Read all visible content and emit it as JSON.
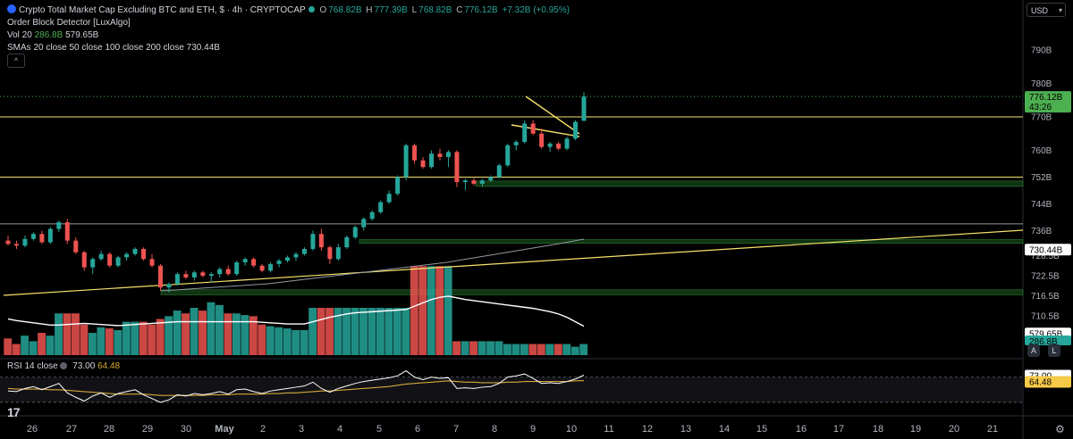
{
  "header": {
    "title": "Crypto Total Market Cap Excluding BTC and ETH, $ · 4h · CRYPTOCAP",
    "ohlc": [
      {
        "k": "O",
        "v": "768.82B"
      },
      {
        "k": "H",
        "v": "777.39B"
      },
      {
        "k": "L",
        "v": "768.82B"
      },
      {
        "k": "C",
        "v": "776.12B"
      }
    ],
    "change": "+7.32B (+0.95%)",
    "indicator1": "Order Block Detector [LuxAlgo]",
    "vol_label": "Vol 20",
    "vol_value1": "286.8B",
    "vol_value2": "579.65B",
    "sma_label": "SMAs 20 close 50 close 100 close 200 close",
    "sma_value": "730.44B",
    "collapse": "^"
  },
  "price_scale": {
    "currency": "USD",
    "ticks": [
      "790B",
      "780B",
      "770B",
      "760B",
      "752B",
      "744B",
      "736B",
      "728.5B",
      "722.5B",
      "716.5B",
      "710.5B"
    ],
    "last_price_label": "776.12B",
    "countdown": "43:26",
    "sma_label": "730.44B",
    "vol_label": "579.65B",
    "vol_label2": "286.8B",
    "auto_btn": "A",
    "log_btn": "L"
  },
  "rsi_pane": {
    "label": "RSI 14 close",
    "value": "73.00",
    "ma_value": "64.48",
    "scale_label": "73.00",
    "scale_ma_label": "64.48"
  },
  "time_axis": {
    "ticks": [
      "26",
      "27",
      "28",
      "29",
      "30",
      "May",
      "2",
      "3",
      "4",
      "5",
      "6",
      "7",
      "8",
      "9",
      "10",
      "11",
      "12",
      "13",
      "14",
      "15",
      "16",
      "17",
      "18",
      "19",
      "20",
      "21"
    ]
  },
  "colors": {
    "up": "#26a69a",
    "down": "#ef5350",
    "level": "#f7e26b",
    "order_block": "#1b5e20",
    "sma_white": "#ffffff",
    "sma_grey": "#9598a1",
    "rsi": "#ffffff",
    "rsi_ma": "#d4a83a",
    "last_price_bg": "#4caf50",
    "sma_label_bg": "#ffffff"
  },
  "icons": {
    "logo": "tradingview-logo-icon",
    "settings": "gear-icon"
  },
  "chart_data": {
    "type": "candlestick",
    "title": "Crypto Total Market Cap Excluding BTC and ETH, $ · 4h · CRYPTOCAP",
    "interval": "4h",
    "price_unit": "B USD",
    "x_labels": [
      "26",
      "27",
      "28",
      "29",
      "30",
      "May",
      "2",
      "3",
      "4",
      "5",
      "6",
      "7",
      "8",
      "9",
      "10",
      "11",
      "12",
      "13",
      "14",
      "15",
      "16",
      "17",
      "18",
      "19",
      "20",
      "21"
    ],
    "candles": [
      [
        733.0,
        734.5,
        731.5,
        732.0
      ],
      [
        732.0,
        733.0,
        730.5,
        731.5
      ],
      [
        731.5,
        734.5,
        731.0,
        733.5
      ],
      [
        733.5,
        735.5,
        733.0,
        735.0
      ],
      [
        735.0,
        736.0,
        732.0,
        732.5
      ],
      [
        732.5,
        737.0,
        732.0,
        736.5
      ],
      [
        736.5,
        739.0,
        735.5,
        738.5
      ],
      [
        738.5,
        739.5,
        732.0,
        733.0
      ],
      [
        733.0,
        734.0,
        729.0,
        729.5
      ],
      [
        729.5,
        730.0,
        724.0,
        725.0
      ],
      [
        725.0,
        728.0,
        723.0,
        727.5
      ],
      [
        727.5,
        730.0,
        727.0,
        729.0
      ],
      [
        729.0,
        729.5,
        725.0,
        725.5
      ],
      [
        725.5,
        728.5,
        725.0,
        728.0
      ],
      [
        728.0,
        729.5,
        727.0,
        729.0
      ],
      [
        729.0,
        731.0,
        728.5,
        730.5
      ],
      [
        730.5,
        731.0,
        727.0,
        727.5
      ],
      [
        727.5,
        729.0,
        725.0,
        725.5
      ],
      [
        725.5,
        726.0,
        718.0,
        719.0
      ],
      [
        719.0,
        720.5,
        717.5,
        720.0
      ],
      [
        720.0,
        723.5,
        719.5,
        723.0
      ],
      [
        723.0,
        724.0,
        721.5,
        722.0
      ],
      [
        722.0,
        724.0,
        721.0,
        723.5
      ],
      [
        723.5,
        724.0,
        722.0,
        722.5
      ],
      [
        722.5,
        723.5,
        720.5,
        723.0
      ],
      [
        723.0,
        725.0,
        722.0,
        724.5
      ],
      [
        724.5,
        725.5,
        722.5,
        723.0
      ],
      [
        723.0,
        727.0,
        722.5,
        726.5
      ],
      [
        726.5,
        728.0,
        725.5,
        727.5
      ],
      [
        727.5,
        728.0,
        725.0,
        725.5
      ],
      [
        725.5,
        726.0,
        723.5,
        724.0
      ],
      [
        724.0,
        726.5,
        723.5,
        726.0
      ],
      [
        726.0,
        727.5,
        725.0,
        727.0
      ],
      [
        727.0,
        728.5,
        726.5,
        728.0
      ],
      [
        728.0,
        729.5,
        727.0,
        729.0
      ],
      [
        729.0,
        731.0,
        728.5,
        730.5
      ],
      [
        730.5,
        736.0,
        730.0,
        735.0
      ],
      [
        735.0,
        736.5,
        730.0,
        731.0
      ],
      [
        731.0,
        731.5,
        726.0,
        727.5
      ],
      [
        727.5,
        732.0,
        727.0,
        731.0
      ],
      [
        731.0,
        734.5,
        730.5,
        734.0
      ],
      [
        734.0,
        737.5,
        733.5,
        737.0
      ],
      [
        737.0,
        740.0,
        736.0,
        739.5
      ],
      [
        739.5,
        742.0,
        739.0,
        741.5
      ],
      [
        741.5,
        745.0,
        741.0,
        744.5
      ],
      [
        744.5,
        748.0,
        744.0,
        747.0
      ],
      [
        747.0,
        752.5,
        746.5,
        752.0
      ],
      [
        752.0,
        762.0,
        751.0,
        761.5
      ],
      [
        761.5,
        762.0,
        756.0,
        757.0
      ],
      [
        757.0,
        758.0,
        754.5,
        755.0
      ],
      [
        755.0,
        760.0,
        754.5,
        759.0
      ],
      [
        759.0,
        760.5,
        757.0,
        758.0
      ],
      [
        758.0,
        760.0,
        755.0,
        759.5
      ],
      [
        759.5,
        760.0,
        749.0,
        750.5
      ],
      [
        750.5,
        751.5,
        748.0,
        751.0
      ],
      [
        751.0,
        752.0,
        749.5,
        750.0
      ],
      [
        750.0,
        751.5,
        749.0,
        751.0
      ],
      [
        751.0,
        752.5,
        750.5,
        752.0
      ],
      [
        752.0,
        756.0,
        751.5,
        755.5
      ],
      [
        755.5,
        762.0,
        755.0,
        761.5
      ],
      [
        761.5,
        763.0,
        760.0,
        762.5
      ],
      [
        762.5,
        769.0,
        762.0,
        768.0
      ],
      [
        768.0,
        769.0,
        764.5,
        765.0
      ],
      [
        765.0,
        766.5,
        760.5,
        761.0
      ],
      [
        761.0,
        762.5,
        759.5,
        762.0
      ],
      [
        762.0,
        762.5,
        760.0,
        760.5
      ],
      [
        760.5,
        764.0,
        760.0,
        763.5
      ],
      [
        763.5,
        769.0,
        763.0,
        768.5
      ],
      [
        768.8,
        777.4,
        768.8,
        776.1
      ]
    ],
    "volume": [
      570,
      560,
      575,
      565,
      580,
      575,
      615,
      615,
      615,
      595,
      580,
      590,
      588,
      585,
      600,
      600,
      600,
      595,
      605,
      610,
      620,
      615,
      625,
      620,
      635,
      630,
      615,
      615,
      612,
      610,
      595,
      592,
      590,
      588,
      585,
      585,
      625,
      625,
      625,
      625,
      625,
      625,
      625,
      625,
      625,
      625,
      625,
      625,
      700,
      700,
      700,
      700,
      700,
      565,
      565,
      565,
      565,
      565,
      565,
      560,
      560,
      560,
      560,
      560,
      560,
      560,
      560,
      555,
      560
    ],
    "volume_ma": [
      605,
      602,
      600,
      598,
      596,
      594,
      594,
      595,
      596,
      597,
      596,
      595,
      594,
      593,
      594,
      595,
      596,
      597,
      598,
      599,
      600,
      600,
      600,
      600,
      600,
      600,
      600,
      600,
      600,
      600,
      599,
      598,
      597,
      596,
      596,
      596,
      600,
      604,
      608,
      611,
      614,
      616,
      617,
      618,
      619,
      620,
      621,
      622,
      628,
      634,
      640,
      644,
      646,
      643,
      640,
      638,
      636,
      634,
      632,
      630,
      628,
      626,
      624,
      621,
      618,
      614,
      608,
      600,
      592
    ],
    "sma_values": {
      "label": "730.44B"
    },
    "levels": [
      {
        "price": 752.0,
        "color": "#f7e26b"
      },
      {
        "price": 770.0,
        "color": "#f7e26b"
      },
      {
        "price": 738.0,
        "color": "#9598a1"
      }
    ],
    "order_blocks": [
      {
        "top": 750.8,
        "bottom": 749.2
      },
      {
        "top": 733.3,
        "bottom": 732.2
      },
      {
        "top": 718.3,
        "bottom": 716.8
      }
    ],
    "rsi": [
      48,
      47,
      52,
      55,
      50,
      55,
      60,
      45,
      38,
      32,
      40,
      45,
      38,
      44,
      47,
      50,
      42,
      36,
      30,
      34,
      42,
      40,
      44,
      42,
      44,
      47,
      43,
      50,
      51,
      47,
      44,
      48,
      50,
      52,
      54,
      56,
      62,
      52,
      46,
      52,
      56,
      60,
      63,
      65,
      67,
      69,
      72,
      80,
      70,
      66,
      70,
      68,
      69,
      52,
      53,
      52,
      54,
      55,
      60,
      70,
      72,
      75,
      68,
      60,
      61,
      60,
      63,
      67,
      73
    ],
    "rsi_ma": [
      52,
      51,
      51,
      51,
      51,
      50,
      50,
      49,
      48,
      47,
      46,
      45,
      44,
      43,
      43,
      43,
      43,
      42,
      41,
      41,
      41,
      41,
      41,
      41,
      42,
      42,
      42,
      43,
      43,
      43,
      43,
      44,
      44,
      45,
      45,
      46,
      47,
      48,
      48,
      49,
      50,
      51,
      52,
      53,
      54,
      55,
      57,
      59,
      60,
      61,
      62,
      63,
      64,
      63,
      62,
      62,
      61,
      61,
      61,
      62,
      62,
      63,
      63,
      63,
      63,
      63,
      63,
      64,
      64.48
    ]
  }
}
